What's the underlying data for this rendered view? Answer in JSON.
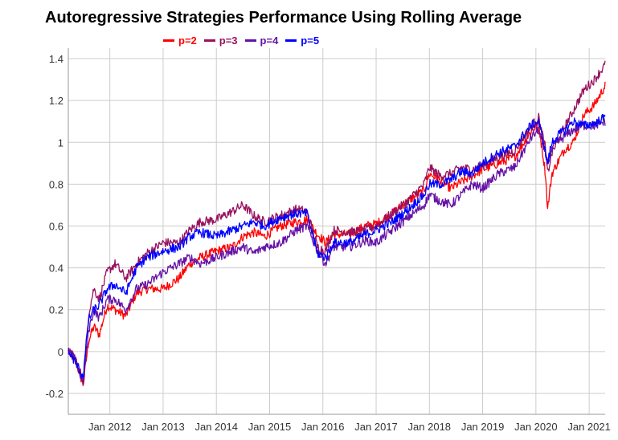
{
  "chart_data": {
    "type": "line",
    "title": "Autoregressive Strategies Performance Using Rolling Average",
    "xlabel": "",
    "ylabel": "",
    "ylim": [
      -0.3,
      1.45
    ],
    "xlim": [
      2011.22,
      2021.3
    ],
    "grid": true,
    "legend_position": "top",
    "y_ticks": [
      -0.2,
      0,
      0.2,
      0.4,
      0.6,
      0.8,
      1,
      1.2,
      1.4
    ],
    "y_tick_labels": [
      "-0.2",
      "0",
      "0.2",
      "0.4",
      "0.6",
      "0.8",
      "1",
      "1.2",
      "1.4"
    ],
    "x_ticks": [
      2012,
      2013,
      2014,
      2015,
      2016,
      2017,
      2018,
      2019,
      2020,
      2021
    ],
    "x_tick_labels": [
      "Jan 2012",
      "Jan 2013",
      "Jan 2014",
      "Jan 2015",
      "Jan 2016",
      "Jan 2017",
      "Jan 2018",
      "Jan 2019",
      "Jan 2020",
      "Jan 2021"
    ],
    "series": [
      {
        "name": "p=2",
        "color": "#ff0000",
        "x": [
          2011.22,
          2011.35,
          2011.5,
          2011.6,
          2011.7,
          2011.8,
          2011.95,
          2012.1,
          2012.3,
          2012.5,
          2012.7,
          2013.0,
          2013.3,
          2013.5,
          2013.7,
          2014.0,
          2014.3,
          2014.5,
          2014.7,
          2014.9,
          2015.2,
          2015.5,
          2015.7,
          2015.9,
          2016.05,
          2016.2,
          2016.5,
          2016.8,
          2017.0,
          2017.3,
          2017.6,
          2017.9,
          2018.0,
          2018.2,
          2018.4,
          2018.6,
          2018.8,
          2019.0,
          2019.3,
          2019.6,
          2019.9,
          2020.05,
          2020.18,
          2020.22,
          2020.3,
          2020.4,
          2020.55,
          2020.7,
          2020.9,
          2021.1,
          2021.3
        ],
        "values": [
          0.0,
          -0.04,
          -0.16,
          0.05,
          0.12,
          0.08,
          0.22,
          0.2,
          0.17,
          0.28,
          0.3,
          0.3,
          0.35,
          0.42,
          0.45,
          0.48,
          0.5,
          0.55,
          0.57,
          0.55,
          0.6,
          0.62,
          0.63,
          0.56,
          0.52,
          0.56,
          0.56,
          0.6,
          0.61,
          0.66,
          0.72,
          0.77,
          0.85,
          0.82,
          0.78,
          0.81,
          0.84,
          0.87,
          0.9,
          0.93,
          1.05,
          1.09,
          0.85,
          0.68,
          0.85,
          0.9,
          0.97,
          1.0,
          1.13,
          1.18,
          1.27
        ]
      },
      {
        "name": "p=3",
        "color": "#99115f",
        "x": [
          2011.22,
          2011.35,
          2011.5,
          2011.6,
          2011.7,
          2011.8,
          2011.95,
          2012.1,
          2012.3,
          2012.5,
          2012.7,
          2013.0,
          2013.3,
          2013.5,
          2013.7,
          2014.0,
          2014.3,
          2014.5,
          2014.7,
          2014.9,
          2015.2,
          2015.5,
          2015.7,
          2015.9,
          2016.05,
          2016.2,
          2016.5,
          2016.8,
          2017.0,
          2017.3,
          2017.6,
          2017.9,
          2018.0,
          2018.2,
          2018.4,
          2018.6,
          2018.8,
          2019.0,
          2019.3,
          2019.6,
          2019.9,
          2020.05,
          2020.18,
          2020.22,
          2020.3,
          2020.4,
          2020.55,
          2020.7,
          2020.9,
          2021.1,
          2021.3
        ],
        "values": [
          0.0,
          -0.03,
          -0.14,
          0.18,
          0.3,
          0.25,
          0.38,
          0.42,
          0.35,
          0.42,
          0.47,
          0.52,
          0.52,
          0.58,
          0.62,
          0.63,
          0.67,
          0.7,
          0.65,
          0.62,
          0.65,
          0.68,
          0.67,
          0.5,
          0.48,
          0.58,
          0.57,
          0.58,
          0.6,
          0.66,
          0.72,
          0.8,
          0.88,
          0.84,
          0.85,
          0.88,
          0.87,
          0.89,
          0.93,
          0.96,
          1.07,
          1.12,
          0.97,
          0.85,
          0.95,
          1.0,
          1.08,
          1.15,
          1.25,
          1.3,
          1.37
        ]
      },
      {
        "name": "p=4",
        "color": "#6612a6",
        "x": [
          2011.22,
          2011.35,
          2011.5,
          2011.6,
          2011.7,
          2011.8,
          2011.95,
          2012.1,
          2012.3,
          2012.5,
          2012.7,
          2013.0,
          2013.3,
          2013.5,
          2013.7,
          2014.0,
          2014.3,
          2014.5,
          2014.7,
          2014.9,
          2015.2,
          2015.5,
          2015.7,
          2015.9,
          2016.05,
          2016.2,
          2016.5,
          2016.8,
          2017.0,
          2017.3,
          2017.6,
          2017.9,
          2018.0,
          2018.2,
          2018.4,
          2018.6,
          2018.8,
          2019.0,
          2019.3,
          2019.6,
          2019.9,
          2020.05,
          2020.18,
          2020.22,
          2020.3,
          2020.4,
          2020.55,
          2020.7,
          2020.9,
          2021.1,
          2021.3
        ],
        "values": [
          0.0,
          -0.04,
          -0.15,
          0.1,
          0.2,
          0.16,
          0.25,
          0.25,
          0.2,
          0.3,
          0.32,
          0.38,
          0.42,
          0.45,
          0.42,
          0.45,
          0.48,
          0.5,
          0.47,
          0.5,
          0.52,
          0.58,
          0.6,
          0.48,
          0.42,
          0.5,
          0.5,
          0.53,
          0.52,
          0.58,
          0.64,
          0.7,
          0.75,
          0.72,
          0.7,
          0.75,
          0.8,
          0.78,
          0.85,
          0.88,
          1.02,
          1.06,
          0.95,
          0.9,
          0.96,
          1.0,
          1.03,
          1.06,
          1.08,
          1.08,
          1.1
        ]
      },
      {
        "name": "p=5",
        "color": "#0000ff",
        "x": [
          2011.22,
          2011.35,
          2011.5,
          2011.6,
          2011.7,
          2011.8,
          2011.95,
          2012.1,
          2012.3,
          2012.5,
          2012.7,
          2013.0,
          2013.3,
          2013.5,
          2013.7,
          2014.0,
          2014.3,
          2014.5,
          2014.7,
          2014.9,
          2015.2,
          2015.5,
          2015.7,
          2015.9,
          2016.05,
          2016.2,
          2016.5,
          2016.8,
          2017.0,
          2017.3,
          2017.6,
          2017.9,
          2018.0,
          2018.2,
          2018.4,
          2018.6,
          2018.8,
          2019.0,
          2019.3,
          2019.6,
          2019.9,
          2020.05,
          2020.18,
          2020.22,
          2020.3,
          2020.4,
          2020.55,
          2020.7,
          2020.9,
          2021.1,
          2021.3
        ],
        "values": [
          0.0,
          -0.05,
          -0.12,
          0.15,
          0.2,
          0.22,
          0.3,
          0.32,
          0.28,
          0.4,
          0.45,
          0.48,
          0.5,
          0.55,
          0.57,
          0.55,
          0.58,
          0.6,
          0.62,
          0.6,
          0.64,
          0.66,
          0.66,
          0.47,
          0.45,
          0.52,
          0.52,
          0.56,
          0.58,
          0.62,
          0.68,
          0.75,
          0.8,
          0.8,
          0.82,
          0.86,
          0.85,
          0.9,
          0.95,
          0.98,
          1.08,
          1.1,
          0.95,
          0.9,
          1.0,
          1.03,
          1.06,
          1.1,
          1.08,
          1.09,
          1.12
        ]
      }
    ]
  }
}
